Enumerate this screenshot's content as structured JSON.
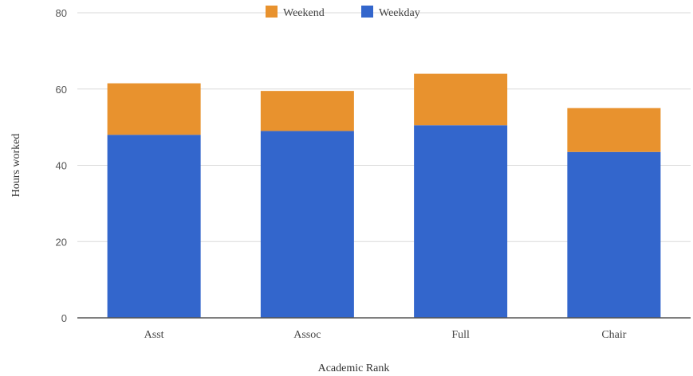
{
  "chart_data": {
    "type": "bar",
    "stacked": true,
    "categories": [
      "Asst",
      "Assoc",
      "Full",
      "Chair"
    ],
    "series": [
      {
        "name": "Weekday",
        "values": [
          48,
          49,
          50.5,
          43.5
        ],
        "color": "#3366CC"
      },
      {
        "name": "Weekend",
        "values": [
          13.5,
          10.5,
          13.5,
          11.5
        ],
        "color": "#E8922E"
      }
    ],
    "xlabel": "Academic Rank",
    "ylabel": "Hours worked",
    "ylim": [
      0,
      80
    ],
    "yticks": [
      0,
      20,
      40,
      60,
      80
    ],
    "grid": true,
    "legend": "top-center",
    "legend_order": [
      "Weekend",
      "Weekday"
    ]
  }
}
